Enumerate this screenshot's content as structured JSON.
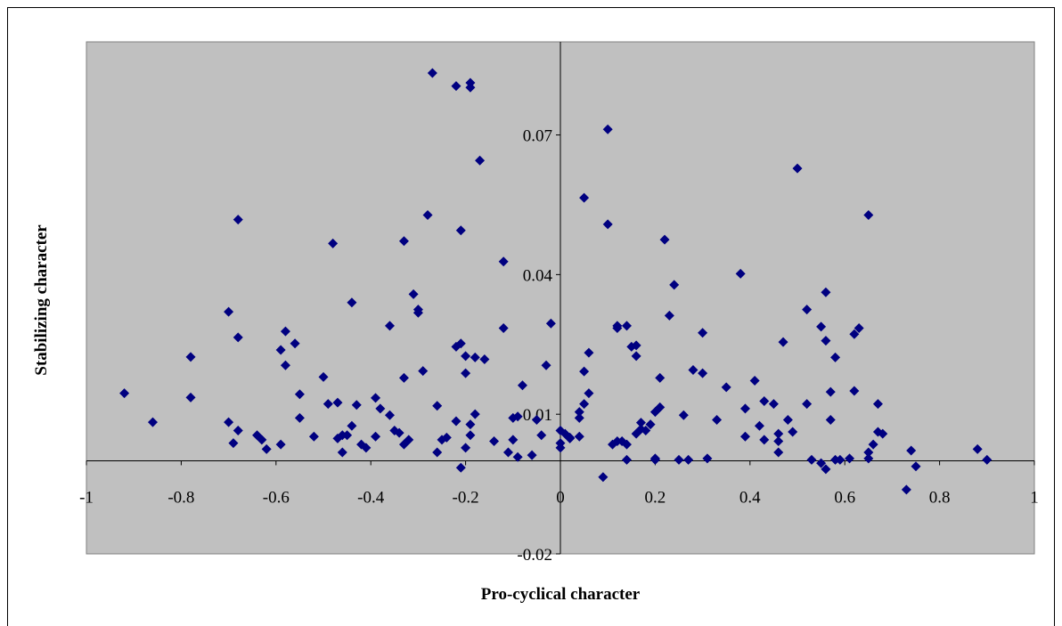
{
  "chart_data": {
    "type": "scatter",
    "title": "",
    "xlabel": "Pro-cyclical character",
    "ylabel": "Stabilizing character",
    "xlim": [
      -1,
      1
    ],
    "ylim": [
      -0.02,
      0.09
    ],
    "x_ticks": [
      "-1",
      "-0.8",
      "-0.6",
      "-0.4",
      "-0.2",
      "0",
      "0.2",
      "0.4",
      "0.6",
      "0.8",
      "1"
    ],
    "y_ticks": [
      "-0.02",
      "0.01",
      "0.04",
      "0.07"
    ],
    "grid": false,
    "legend": "none",
    "plot_background": "#c0c0c0",
    "marker_color": "#000080",
    "marker": "diamond",
    "points": [
      [
        -0.92,
        0.0145
      ],
      [
        -0.86,
        0.0083
      ],
      [
        -0.78,
        0.0223
      ],
      [
        -0.78,
        0.0136
      ],
      [
        -0.7,
        0.032
      ],
      [
        -0.7,
        0.0083
      ],
      [
        -0.69,
        0.0038
      ],
      [
        -0.68,
        0.0065
      ],
      [
        -0.68,
        0.0265
      ],
      [
        -0.68,
        0.0518
      ],
      [
        -0.64,
        0.0055
      ],
      [
        -0.63,
        0.0045
      ],
      [
        -0.62,
        0.0025
      ],
      [
        -0.59,
        0.0238
      ],
      [
        -0.59,
        0.0035
      ],
      [
        -0.58,
        0.0278
      ],
      [
        -0.58,
        0.0205
      ],
      [
        -0.56,
        0.0252
      ],
      [
        -0.55,
        0.0092
      ],
      [
        -0.55,
        0.0143
      ],
      [
        -0.52,
        0.0052
      ],
      [
        -0.5,
        0.018
      ],
      [
        -0.49,
        0.0122
      ],
      [
        -0.48,
        0.0467
      ],
      [
        -0.47,
        0.0125
      ],
      [
        -0.47,
        0.0048
      ],
      [
        -0.46,
        0.0055
      ],
      [
        -0.46,
        0.0018
      ],
      [
        -0.45,
        0.0055
      ],
      [
        -0.44,
        0.0075
      ],
      [
        -0.44,
        0.034
      ],
      [
        -0.43,
        0.012
      ],
      [
        -0.42,
        0.0035
      ],
      [
        -0.41,
        0.0028
      ],
      [
        -0.39,
        0.0052
      ],
      [
        -0.39,
        0.0135
      ],
      [
        -0.38,
        0.0112
      ],
      [
        -0.36,
        0.0098
      ],
      [
        -0.36,
        0.029
      ],
      [
        -0.35,
        0.0065
      ],
      [
        -0.34,
        0.006
      ],
      [
        -0.33,
        0.0178
      ],
      [
        -0.33,
        0.0472
      ],
      [
        -0.33,
        0.0035
      ],
      [
        -0.32,
        0.0045
      ],
      [
        -0.31,
        0.0358
      ],
      [
        -0.3,
        0.0318
      ],
      [
        -0.3,
        0.0325
      ],
      [
        -0.29,
        0.0193
      ],
      [
        -0.28,
        0.0528
      ],
      [
        -0.27,
        0.0833
      ],
      [
        -0.26,
        0.0018
      ],
      [
        -0.26,
        0.0118
      ],
      [
        -0.25,
        0.0045
      ],
      [
        -0.24,
        0.005
      ],
      [
        -0.22,
        0.0805
      ],
      [
        -0.22,
        0.0085
      ],
      [
        -0.22,
        0.0245
      ],
      [
        -0.21,
        0.0252
      ],
      [
        -0.21,
        -0.0015
      ],
      [
        -0.21,
        0.0495
      ],
      [
        -0.2,
        0.0188
      ],
      [
        -0.2,
        0.0225
      ],
      [
        -0.2,
        0.0028
      ],
      [
        -0.19,
        0.0812
      ],
      [
        -0.19,
        0.0802
      ],
      [
        -0.19,
        0.0055
      ],
      [
        -0.19,
        0.0078
      ],
      [
        -0.18,
        0.0222
      ],
      [
        -0.18,
        0.01
      ],
      [
        -0.17,
        0.0645
      ],
      [
        -0.16,
        0.0218
      ],
      [
        -0.14,
        0.0042
      ],
      [
        -0.12,
        0.0428
      ],
      [
        -0.12,
        0.0285
      ],
      [
        -0.11,
        0.0018
      ],
      [
        -0.1,
        0.0092
      ],
      [
        -0.1,
        0.0045
      ],
      [
        -0.09,
        0.0008
      ],
      [
        -0.09,
        0.0095
      ],
      [
        -0.08,
        0.0162
      ],
      [
        -0.06,
        0.0012
      ],
      [
        -0.05,
        0.0088
      ],
      [
        -0.04,
        0.0055
      ],
      [
        -0.03,
        0.0205
      ],
      [
        -0.02,
        0.0295
      ],
      [
        0.0,
        0.0065
      ],
      [
        0.0,
        0.0038
      ],
      [
        0.0,
        0.0028
      ],
      [
        0.01,
        0.0058
      ],
      [
        0.02,
        0.005
      ],
      [
        0.02,
        0.0048
      ],
      [
        0.04,
        0.0052
      ],
      [
        0.04,
        0.0092
      ],
      [
        0.04,
        0.0105
      ],
      [
        0.05,
        0.0122
      ],
      [
        0.05,
        0.0192
      ],
      [
        0.05,
        0.0565
      ],
      [
        0.06,
        0.0145
      ],
      [
        0.06,
        0.0232
      ],
      [
        0.09,
        -0.0035
      ],
      [
        0.1,
        0.0508
      ],
      [
        0.1,
        0.0712
      ],
      [
        0.11,
        0.0035
      ],
      [
        0.12,
        0.0042
      ],
      [
        0.12,
        0.0285
      ],
      [
        0.12,
        0.029
      ],
      [
        0.13,
        0.0042
      ],
      [
        0.14,
        0.029
      ],
      [
        0.14,
        0.0035
      ],
      [
        0.14,
        0.0002
      ],
      [
        0.15,
        0.0245
      ],
      [
        0.16,
        0.0248
      ],
      [
        0.16,
        0.0225
      ],
      [
        0.16,
        0.0058
      ],
      [
        0.17,
        0.0068
      ],
      [
        0.17,
        0.0082
      ],
      [
        0.18,
        0.0065
      ],
      [
        0.19,
        0.0078
      ],
      [
        0.2,
        0.0002
      ],
      [
        0.2,
        0.0005
      ],
      [
        0.2,
        0.0105
      ],
      [
        0.21,
        0.0115
      ],
      [
        0.21,
        0.0178
      ],
      [
        0.22,
        0.0475
      ],
      [
        0.23,
        0.0312
      ],
      [
        0.24,
        0.0378
      ],
      [
        0.25,
        0.0002
      ],
      [
        0.26,
        0.0098
      ],
      [
        0.27,
        0.0002
      ],
      [
        0.28,
        0.0195
      ],
      [
        0.3,
        0.0188
      ],
      [
        0.3,
        0.0275
      ],
      [
        0.31,
        0.0005
      ],
      [
        0.33,
        0.0088
      ],
      [
        0.35,
        0.0158
      ],
      [
        0.38,
        0.0402
      ],
      [
        0.39,
        0.0052
      ],
      [
        0.39,
        0.0112
      ],
      [
        0.41,
        0.0172
      ],
      [
        0.42,
        0.0075
      ],
      [
        0.43,
        0.0045
      ],
      [
        0.43,
        0.0128
      ],
      [
        0.45,
        0.0122
      ],
      [
        0.46,
        0.0042
      ],
      [
        0.46,
        0.0058
      ],
      [
        0.46,
        0.0018
      ],
      [
        0.47,
        0.0255
      ],
      [
        0.48,
        0.0088
      ],
      [
        0.49,
        0.0062
      ],
      [
        0.5,
        0.0628
      ],
      [
        0.52,
        0.0122
      ],
      [
        0.52,
        0.0325
      ],
      [
        0.53,
        0.0002
      ],
      [
        0.55,
        0.0288
      ],
      [
        0.55,
        -0.0005
      ],
      [
        0.56,
        -0.0018
      ],
      [
        0.56,
        0.0258
      ],
      [
        0.56,
        0.0362
      ],
      [
        0.57,
        0.0088
      ],
      [
        0.57,
        0.0148
      ],
      [
        0.58,
        0.0222
      ],
      [
        0.58,
        0.0002
      ],
      [
        0.59,
        0.0002
      ],
      [
        0.61,
        0.0005
      ],
      [
        0.62,
        0.0272
      ],
      [
        0.62,
        0.015
      ],
      [
        0.63,
        0.0285
      ],
      [
        0.65,
        0.0528
      ],
      [
        0.65,
        0.0005
      ],
      [
        0.65,
        0.0018
      ],
      [
        0.66,
        0.0035
      ],
      [
        0.67,
        0.0122
      ],
      [
        0.67,
        0.0062
      ],
      [
        0.68,
        0.0058
      ],
      [
        0.73,
        -0.0062
      ],
      [
        0.74,
        0.0022
      ],
      [
        0.75,
        -0.0012
      ],
      [
        0.88,
        0.0025
      ],
      [
        0.9,
        0.0002
      ]
    ]
  }
}
